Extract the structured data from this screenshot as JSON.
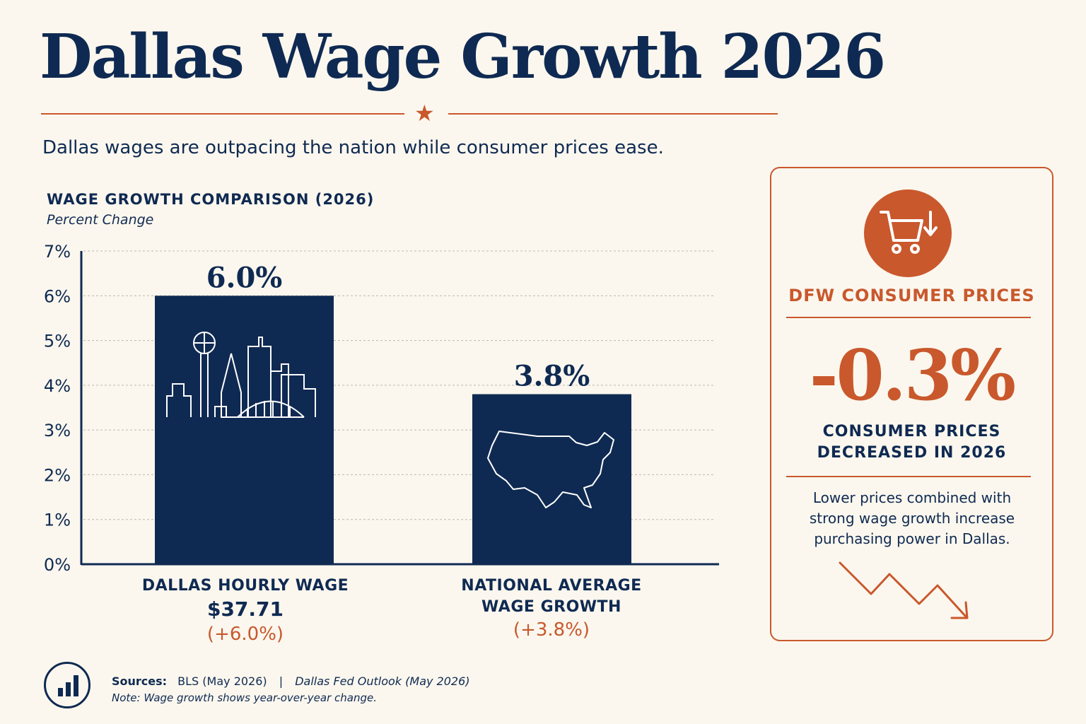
{
  "title": "Dallas Wage Growth 2026",
  "subtitle": "Dallas wages are outpacing the nation while consumer prices ease.",
  "chart_data": {
    "type": "bar",
    "title": "WAGE GROWTH COMPARISON (2026)",
    "ylabel": "Percent Change",
    "xlabel": "",
    "ylim": [
      0,
      7
    ],
    "yticks": [
      0,
      1,
      2,
      3,
      4,
      5,
      6,
      7
    ],
    "ytick_labels": [
      "0%",
      "1%",
      "2%",
      "3%",
      "4%",
      "5%",
      "6%",
      "7%"
    ],
    "grid": true,
    "categories": [
      "DALLAS HOURLY WAGE",
      "NATIONAL AVERAGE WAGE GROWTH"
    ],
    "values": [
      6.0,
      3.8
    ],
    "data_labels": [
      "6.0%",
      "3.8%"
    ],
    "bar_color": "#0f2a52"
  },
  "bars_detail": [
    {
      "name_lines": [
        "DALLAS HOURLY WAGE"
      ],
      "wage": "$37.71",
      "change": "(+6.0%)",
      "icon": "dallas-skyline-icon"
    },
    {
      "name_lines": [
        "NATIONAL AVERAGE",
        "WAGE GROWTH"
      ],
      "wage": "",
      "change": "(+3.8%)",
      "icon": "usa-map-icon"
    }
  ],
  "panel": {
    "icon": "shopping-cart-down-icon",
    "heading": "DFW CONSUMER PRICES",
    "value": "-0.3%",
    "caption_line1": "CONSUMER PRICES",
    "caption_line2": "DECREASED IN 2026",
    "body_line1": "Lower prices combined with",
    "body_line2": "strong wage growth increase",
    "body_line3": "purchasing power in Dallas.",
    "trend_icon": "downtrend-arrow-icon"
  },
  "footer": {
    "icon": "bar-chart-icon",
    "sources_label": "Sources:",
    "source1": "BLS (May 2026)",
    "separator": "|",
    "source2": "Dallas Fed Outlook (May 2026)",
    "note": "Note: Wage growth shows year-over-year change."
  },
  "colors": {
    "navy": "#0f2a52",
    "accent": "#c9582c",
    "background": "#fbf7ee"
  }
}
